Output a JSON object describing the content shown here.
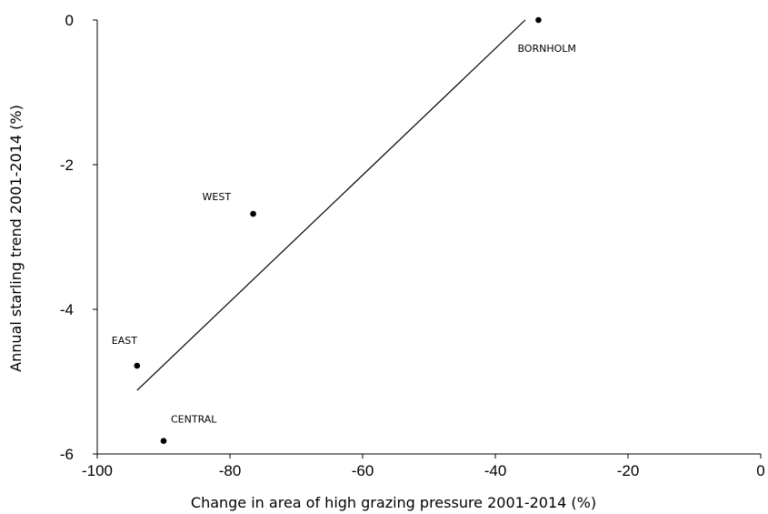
{
  "chart_data": {
    "type": "scatter",
    "xlabel": "Change in area of high grazing pressure 2001-2014 (%)",
    "ylabel": "Annual starling trend 2001-2014 (%)",
    "xlim": [
      -100,
      0
    ],
    "ylim": [
      -6,
      0
    ],
    "x_ticks": [
      -100,
      -80,
      -60,
      -40,
      -20,
      0
    ],
    "y_ticks": [
      0,
      -2,
      -4,
      -6
    ],
    "grid": false,
    "points": [
      {
        "label": "BORNHOLM",
        "x": -33.5,
        "y": 0
      },
      {
        "label": "WEST",
        "x": -76.5,
        "y": -2.68
      },
      {
        "label": "EAST",
        "x": -94,
        "y": -4.78
      },
      {
        "label": "CENTRAL",
        "x": -90,
        "y": -5.82
      }
    ],
    "trendline": {
      "x": [
        -94,
        -35.5
      ],
      "y": [
        -5.12,
        0
      ]
    }
  }
}
